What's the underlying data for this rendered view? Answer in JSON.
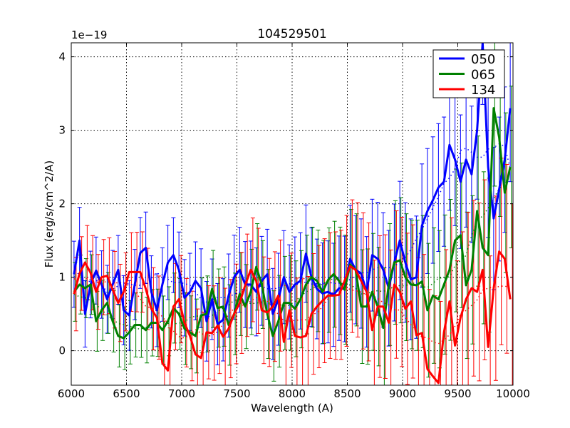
{
  "chart_data": {
    "type": "line",
    "title": "104529501",
    "xlabel": "Wavelength (A)",
    "ylabel": "Flux (erg/s/cm^2/A)",
    "y_offset_label": "1e−19",
    "xlim": [
      6000,
      10000
    ],
    "ylim": [
      -0.47,
      4.19
    ],
    "xticks": [
      6000,
      6500,
      7000,
      7500,
      8000,
      8500,
      9000,
      9500,
      10000
    ],
    "yticks": [
      0,
      1,
      2,
      3,
      4
    ],
    "grid": true,
    "legend_position": "top-right",
    "x_start": 6025,
    "x_step": 50,
    "series": [
      {
        "name": "050",
        "color": "#0000ff",
        "yerr_range": [
          0.45,
          1.0
        ],
        "values": [
          1.04,
          1.5,
          0.5,
          0.9,
          1.09,
          0.9,
          0.7,
          0.9,
          1.1,
          0.55,
          0.48,
          0.9,
          1.33,
          1.4,
          0.8,
          0.55,
          0.9,
          1.2,
          1.3,
          1.1,
          0.72,
          0.8,
          0.95,
          0.85,
          0.4,
          0.7,
          0.36,
          0.42,
          0.75,
          1.0,
          1.1,
          0.9,
          0.9,
          0.8,
          0.95,
          1.04,
          0.5,
          0.7,
          1.0,
          0.8,
          0.9,
          0.95,
          1.32,
          1.0,
          0.84,
          0.78,
          0.8,
          0.76,
          0.85,
          0.84,
          1.25,
          1.1,
          1.05,
          0.8,
          1.3,
          1.25,
          1.1,
          0.85,
          1.2,
          1.5,
          1.2,
          0.97,
          1.0,
          1.7,
          1.9,
          2.05,
          2.22,
          2.3,
          2.8,
          2.6,
          2.3,
          2.6,
          2.4,
          3.0,
          4.3,
          2.5,
          1.8,
          2.2,
          2.6,
          3.3
        ]
      },
      {
        "name": "065",
        "color": "#008000",
        "yerr_range": [
          0.4,
          1.1
        ],
        "values": [
          0.8,
          0.9,
          0.85,
          0.9,
          0.4,
          0.55,
          0.65,
          0.4,
          0.2,
          0.17,
          0.25,
          0.35,
          0.35,
          0.28,
          0.38,
          0.38,
          0.28,
          0.4,
          0.58,
          0.5,
          0.3,
          0.25,
          0.2,
          0.48,
          0.5,
          0.84,
          0.58,
          0.6,
          0.35,
          0.5,
          0.77,
          0.6,
          0.8,
          1.14,
          0.9,
          0.5,
          0.2,
          0.4,
          0.65,
          0.65,
          0.57,
          0.7,
          0.9,
          1.0,
          0.95,
          0.8,
          0.96,
          1.04,
          0.95,
          0.83,
          1.17,
          1.1,
          0.6,
          0.6,
          0.8,
          0.6,
          0.31,
          0.9,
          1.2,
          1.23,
          1.0,
          0.9,
          0.89,
          0.94,
          0.55,
          0.75,
          0.7,
          0.9,
          1.1,
          1.5,
          1.57,
          0.89,
          1.1,
          1.9,
          1.4,
          1.3,
          3.3,
          2.9,
          2.15,
          2.5
        ]
      },
      {
        "name": "134",
        "color": "#ff0000",
        "yerr_range": [
          0.5,
          1.3
        ],
        "values": [
          0.77,
          1.05,
          1.2,
          1.06,
          0.8,
          1.0,
          1.02,
          0.83,
          0.65,
          0.8,
          1.07,
          1.07,
          1.07,
          0.84,
          0.57,
          0.45,
          -0.17,
          -0.27,
          0.6,
          0.7,
          0.38,
          0.2,
          -0.05,
          -0.1,
          0.25,
          0.24,
          0.34,
          0.19,
          0.3,
          0.5,
          0.65,
          0.89,
          1.1,
          0.95,
          0.55,
          0.52,
          0.6,
          0.75,
          0.12,
          0.55,
          0.2,
          0.18,
          0.2,
          0.5,
          0.6,
          0.68,
          0.75,
          0.75,
          0.76,
          0.95,
          1.15,
          1.1,
          0.95,
          0.8,
          0.28,
          0.6,
          0.6,
          0.38,
          0.9,
          0.8,
          0.57,
          0.67,
          0.21,
          0.24,
          -0.25,
          -0.35,
          -0.44,
          0.25,
          0.67,
          0.07,
          0.45,
          0.7,
          0.85,
          0.8,
          1.1,
          0.05,
          0.85,
          1.35,
          1.25,
          0.7
        ]
      }
    ]
  }
}
